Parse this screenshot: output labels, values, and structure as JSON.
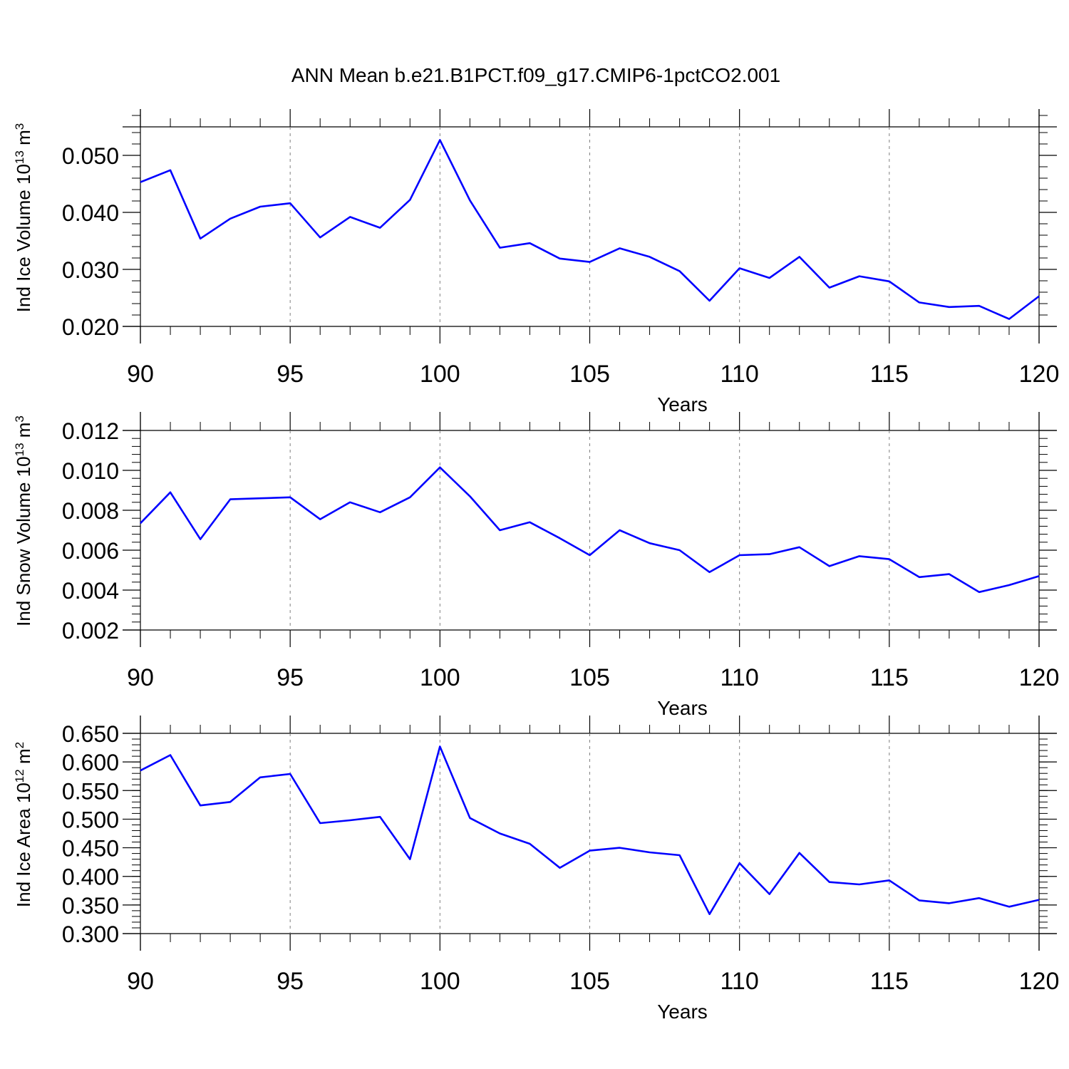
{
  "title": "ANN Mean b.e21.B1PCT.f09_g17.CMIP6-1pctCO2.001",
  "colors": {
    "line": "#0000ff",
    "axes": "#000000",
    "grid": "#808080"
  },
  "chart_data": [
    {
      "type": "line",
      "ylabel": {
        "base": "Ind Ice Volume 10",
        "exp": "13",
        "unit": " m",
        "unit_exp": "3"
      },
      "xlabel": "Years",
      "xlim": [
        90,
        120
      ],
      "ylim": [
        0.02,
        0.055
      ],
      "xticks": [
        90,
        95,
        100,
        105,
        110,
        115,
        120
      ],
      "yticks": [
        0.02,
        0.03,
        0.04,
        0.05
      ],
      "ytick_labels": [
        "0.020",
        "0.030",
        "0.040",
        "0.050"
      ],
      "grid": "x-dashed",
      "series": [
        {
          "x": [
            90,
            91,
            92,
            93,
            94,
            95,
            96,
            97,
            98,
            99,
            100,
            101,
            102,
            103,
            104,
            105,
            106,
            107,
            108,
            109,
            110,
            111,
            112,
            113,
            114,
            115,
            116,
            117,
            118,
            119,
            120
          ],
          "values": [
            0.0453,
            0.0474,
            0.0354,
            0.0389,
            0.041,
            0.0416,
            0.0356,
            0.0392,
            0.0373,
            0.0422,
            0.0527,
            0.0421,
            0.0338,
            0.0346,
            0.0319,
            0.0313,
            0.0337,
            0.0322,
            0.0297,
            0.0245,
            0.0302,
            0.0285,
            0.0322,
            0.0268,
            0.0288,
            0.0279,
            0.0242,
            0.0234,
            0.0236,
            0.0213,
            0.0253
          ]
        }
      ]
    },
    {
      "type": "line",
      "ylabel": {
        "base": "Ind Snow Volume 10",
        "exp": "13",
        "unit": " m",
        "unit_exp": "3"
      },
      "xlabel": "Years",
      "xlim": [
        90,
        120
      ],
      "ylim": [
        0.002,
        0.012
      ],
      "xticks": [
        90,
        95,
        100,
        105,
        110,
        115,
        120
      ],
      "yticks": [
        0.002,
        0.004,
        0.006,
        0.008,
        0.01,
        0.012
      ],
      "ytick_labels": [
        "0.002",
        "0.004",
        "0.006",
        "0.008",
        "0.010",
        "0.012"
      ],
      "grid": "x-dashed",
      "series": [
        {
          "x": [
            90,
            91,
            92,
            93,
            94,
            95,
            96,
            97,
            98,
            99,
            100,
            101,
            102,
            103,
            104,
            105,
            106,
            107,
            108,
            109,
            110,
            111,
            112,
            113,
            114,
            115,
            116,
            117,
            118,
            119,
            120
          ],
          "values": [
            0.00735,
            0.0089,
            0.00655,
            0.00855,
            0.0086,
            0.00865,
            0.00755,
            0.0084,
            0.0079,
            0.00865,
            0.01015,
            0.0087,
            0.007,
            0.0074,
            0.0066,
            0.00575,
            0.007,
            0.00635,
            0.006,
            0.0049,
            0.00575,
            0.0058,
            0.00615,
            0.0052,
            0.0057,
            0.00555,
            0.00465,
            0.0048,
            0.0039,
            0.00425,
            0.0047
          ]
        }
      ]
    },
    {
      "type": "line",
      "ylabel": {
        "base": "Ind Ice Area 10",
        "exp": "12",
        "unit": " m",
        "unit_exp": "2"
      },
      "xlabel": "Years",
      "xlim": [
        90,
        120
      ],
      "ylim": [
        0.3,
        0.65
      ],
      "xticks": [
        90,
        95,
        100,
        105,
        110,
        115,
        120
      ],
      "yticks": [
        0.3,
        0.35,
        0.4,
        0.45,
        0.5,
        0.55,
        0.6,
        0.65
      ],
      "ytick_labels": [
        "0.300",
        "0.350",
        "0.400",
        "0.450",
        "0.500",
        "0.550",
        "0.600",
        "0.650"
      ],
      "grid": "x-dashed",
      "series": [
        {
          "x": [
            90,
            91,
            92,
            93,
            94,
            95,
            96,
            97,
            98,
            99,
            100,
            101,
            102,
            103,
            104,
            105,
            106,
            107,
            108,
            109,
            110,
            111,
            112,
            113,
            114,
            115,
            116,
            117,
            118,
            119,
            120
          ],
          "values": [
            0.585,
            0.612,
            0.524,
            0.53,
            0.573,
            0.579,
            0.493,
            0.498,
            0.504,
            0.43,
            0.627,
            0.502,
            0.475,
            0.457,
            0.415,
            0.445,
            0.45,
            0.442,
            0.437,
            0.334,
            0.423,
            0.369,
            0.441,
            0.39,
            0.386,
            0.393,
            0.358,
            0.353,
            0.362,
            0.347,
            0.359
          ]
        }
      ]
    }
  ]
}
